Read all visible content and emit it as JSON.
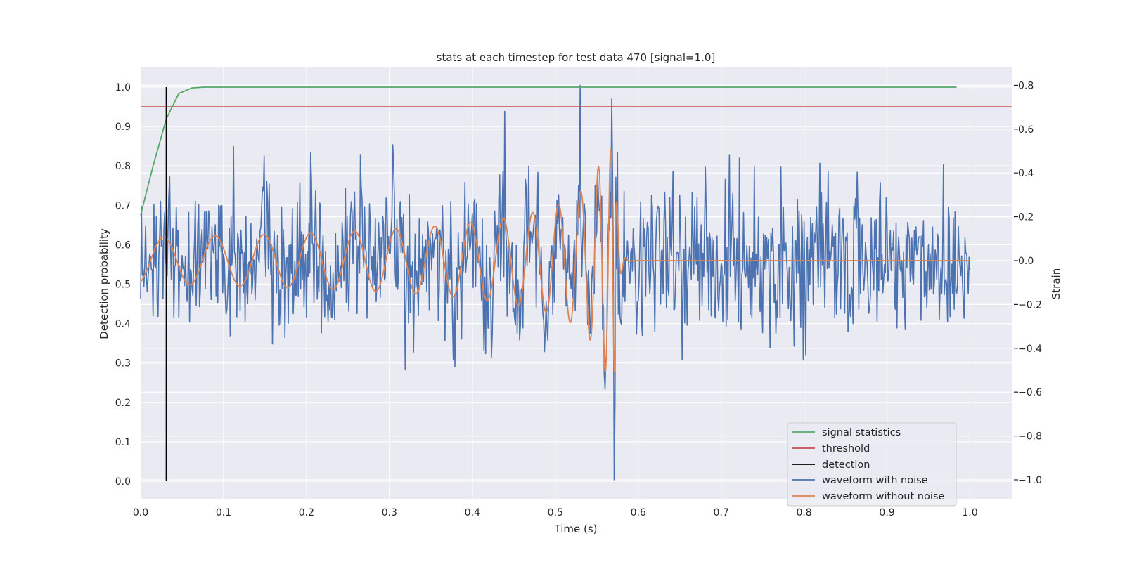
{
  "chart_data": {
    "type": "line",
    "title": "stats at each timestep for test data 470 [signal=1.0]",
    "xlabel": "Time (s)",
    "ylabel": "Detection probability",
    "y2label": "Strain",
    "xlim": [
      0.0,
      1.05
    ],
    "ylim": [
      -0.047,
      1.047
    ],
    "y2lim": [
      -1.085,
      0.875
    ],
    "x_ticks": [
      "0.0",
      "0.1",
      "0.2",
      "0.3",
      "0.4",
      "0.5",
      "0.6",
      "0.7",
      "0.8",
      "0.9",
      "1.0"
    ],
    "y_ticks": [
      "0.0",
      "0.1",
      "0.2",
      "0.3",
      "0.4",
      "0.5",
      "0.6",
      "0.7",
      "0.8",
      "0.9",
      "1.0"
    ],
    "y2_ticks": [
      "−1.0",
      "−0.8",
      "−0.6",
      "−0.4",
      "−0.2",
      "0.0",
      "0.2",
      "0.4",
      "0.6",
      "0.8"
    ],
    "grid": true,
    "legend_position": "lower right",
    "series": [
      {
        "name": "signal statistics",
        "color": "#55a868",
        "axis": "left",
        "x": [
          0.0,
          0.015,
          0.031,
          0.046,
          0.062,
          0.077,
          0.1,
          0.2,
          0.4,
          0.6,
          0.8,
          0.984
        ],
        "y": [
          0.675,
          0.8,
          0.92,
          0.984,
          0.998,
          1.0,
          1.0,
          1.0,
          1.0,
          1.0,
          1.0,
          1.0
        ]
      },
      {
        "name": "threshold",
        "color": "#c44e52",
        "axis": "left",
        "x": [
          0.0,
          1.05
        ],
        "y": [
          0.95,
          0.95
        ]
      },
      {
        "name": "detection",
        "color": "#000000",
        "axis": "left",
        "x": [
          0.031,
          0.031
        ],
        "y": [
          0.0,
          1.0
        ]
      },
      {
        "name": "waveform with noise",
        "color": "#4c72b0",
        "axis": "right",
        "x_range": [
          0.0,
          1.0
        ],
        "amplitude_range": [
          -1.0,
          0.8
        ]
      },
      {
        "name": "waveform without noise",
        "color": "#dd8452",
        "axis": "right",
        "x_range": [
          0.0,
          1.0
        ],
        "merger_time": 0.572,
        "peak_amplitude": 0.51
      }
    ]
  },
  "colors": {
    "plot_background": "#eaeaf2",
    "grid": "#ffffff",
    "text": "#262626"
  }
}
